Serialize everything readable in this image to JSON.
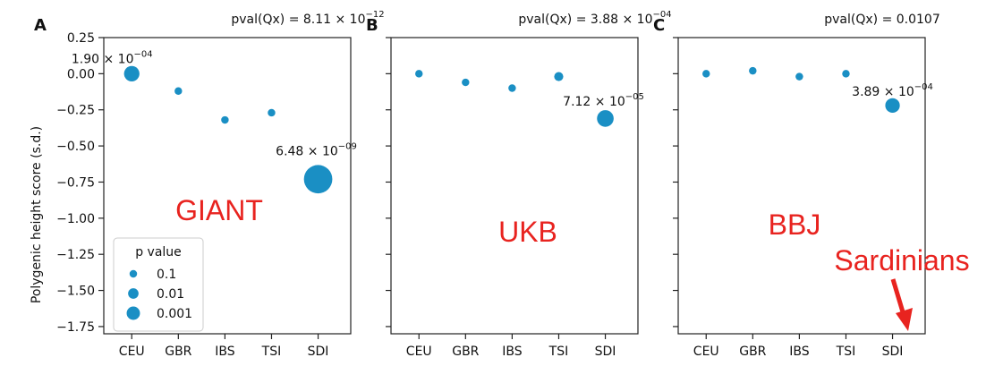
{
  "figure": {
    "ylabel": "Polygenic height score (s.d.)",
    "legend": {
      "title": "p value",
      "entries": [
        {
          "label": "0.1",
          "p": 0.1
        },
        {
          "label": "0.01",
          "p": 0.01
        },
        {
          "label": "0.001",
          "p": 0.001
        }
      ]
    },
    "colors": {
      "marker": "#1a8fc4",
      "dataset_label": "#e8231f"
    },
    "callout": {
      "text": "Sardinians",
      "points_to": "SDI"
    }
  },
  "chart_data": [
    {
      "type": "scatter",
      "panel": "A",
      "title": "pval(Qx) = 8.11 × 10",
      "title_exp": "−12",
      "dataset": "GIANT",
      "categories": [
        "CEU",
        "GBR",
        "IBS",
        "TSI",
        "SDI"
      ],
      "values": [
        0.0,
        -0.12,
        -0.32,
        -0.27,
        -0.73
      ],
      "pvalues": [
        0.00019,
        0.1,
        0.1,
        0.1,
        6.48e-09
      ],
      "annotations": [
        {
          "category": "CEU",
          "mantissa": "1.90 × 10",
          "exp": "−04"
        },
        {
          "category": "SDI",
          "mantissa": "6.48 × 10",
          "exp": "−09"
        }
      ],
      "ylim": [
        -1.8,
        0.25
      ],
      "yticks": [
        0.25,
        0.0,
        -0.25,
        -0.5,
        -0.75,
        -1.0,
        -1.25,
        -1.5,
        -1.75
      ],
      "ytick_labels": [
        "0.25",
        "0.00",
        "−0.25",
        "−0.50",
        "−0.75",
        "−1.00",
        "−1.25",
        "−1.50",
        "−1.75"
      ],
      "legend": "lower-left"
    },
    {
      "type": "scatter",
      "panel": "B",
      "title": "pval(Qx) = 3.88 × 10",
      "title_exp": "−04",
      "dataset": "UKB",
      "categories": [
        "CEU",
        "GBR",
        "IBS",
        "TSI",
        "SDI"
      ],
      "values": [
        0.0,
        -0.06,
        -0.1,
        -0.02,
        -0.31
      ],
      "pvalues": [
        0.1,
        0.1,
        0.1,
        0.03,
        7.12e-05
      ],
      "annotations": [
        {
          "category": "SDI",
          "mantissa": "7.12 × 10",
          "exp": "−05"
        }
      ],
      "ylim": [
        -1.8,
        0.25
      ],
      "yticks": [
        0.25,
        0.0,
        -0.25,
        -0.5,
        -0.75,
        -1.0,
        -1.25,
        -1.5,
        -1.75
      ]
    },
    {
      "type": "scatter",
      "panel": "C",
      "title": "pval(Qx) = 0.0107",
      "title_exp": "",
      "dataset": "BBJ",
      "categories": [
        "CEU",
        "GBR",
        "IBS",
        "TSI",
        "SDI"
      ],
      "values": [
        0.0,
        0.02,
        -0.02,
        0.0,
        -0.22
      ],
      "pvalues": [
        0.1,
        0.1,
        0.1,
        0.1,
        0.000389
      ],
      "annotations": [
        {
          "category": "SDI",
          "mantissa": "3.89 × 10",
          "exp": "−04"
        }
      ],
      "ylim": [
        -1.8,
        0.25
      ],
      "yticks": [
        0.25,
        0.0,
        -0.25,
        -0.5,
        -0.75,
        -1.0,
        -1.25,
        -1.5,
        -1.75
      ]
    }
  ]
}
